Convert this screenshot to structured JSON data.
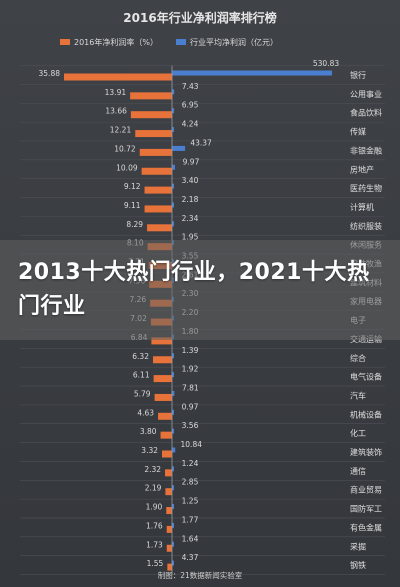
{
  "overlay_title": "2013十大热门行业，2021十大热门行业",
  "footer": "制图：21数据新闻实验室",
  "colors": {
    "net_margin": "#e8733a",
    "avg_profit": "#4a7fd0",
    "background": "#3a3d42"
  },
  "chart_data": {
    "type": "bar",
    "title": "2016年行业净利润率排行榜",
    "legend": [
      "2016年净利润率（%）",
      "行业平均净利润（亿元）"
    ],
    "legend_position": "top",
    "series": [
      {
        "name": "2016年净利润率（%）",
        "direction": "left",
        "values": [
          35.88,
          13.91,
          13.66,
          12.21,
          10.72,
          10.09,
          9.12,
          9.11,
          8.29,
          8.1,
          7.71,
          7.56,
          7.26,
          7.02,
          6.84,
          6.32,
          6.11,
          5.79,
          4.63,
          3.8,
          3.32,
          2.32,
          2.19,
          1.9,
          1.76,
          1.73,
          1.55
        ]
      },
      {
        "name": "行业平均净利润（亿元）",
        "direction": "right",
        "values": [
          530.83,
          7.43,
          6.95,
          4.24,
          43.37,
          9.97,
          3.4,
          2.18,
          2.34,
          1.95,
          3.55,
          2.61,
          2.3,
          2.2,
          1.8,
          1.39,
          1.92,
          7.81,
          0.97,
          3.56,
          10.84,
          1.24,
          2.85,
          1.25,
          1.77,
          1.64,
          4.37
        ]
      }
    ],
    "categories": [
      "银行",
      "公用事业",
      "食品饮料",
      "传媒",
      "非银金融",
      "房地产",
      "医药生物",
      "计算机",
      "纺织服装",
      "休闲服务",
      "农林牧渔",
      "建筑材料",
      "家用电器",
      "电子",
      "交通运输",
      "综合",
      "电气设备",
      "汽车",
      "机械设备",
      "化工",
      "建筑装饰",
      "通信",
      "商业贸易",
      "国防军工",
      "有色金属",
      "采掘",
      "钢铁"
    ]
  }
}
